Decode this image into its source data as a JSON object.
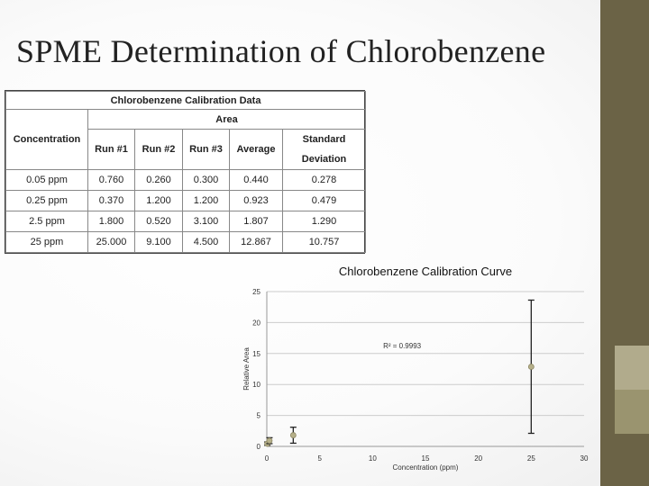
{
  "slide": {
    "title": "SPME Determination of Chlorobenzene"
  },
  "table": {
    "caption": "Chlorobenzene Calibration Data",
    "group_header": "Area",
    "headers": {
      "concentration": "Concentration",
      "run1": "Run #1",
      "run2": "Run #2",
      "run3": "Run #3",
      "average": "Average",
      "sd_line1": "Standard",
      "sd_line2": "Deviation"
    },
    "rows": [
      {
        "concentration": "0.05 ppm",
        "run1": "0.760",
        "run2": "0.260",
        "run3": "0.300",
        "average": "0.440",
        "sd": "0.278"
      },
      {
        "concentration": "0.25 ppm",
        "run1": "0.370",
        "run2": "1.200",
        "run3": "1.200",
        "average": "0.923",
        "sd": "0.479"
      },
      {
        "concentration": "2.5 ppm",
        "run1": "1.800",
        "run2": "0.520",
        "run3": "3.100",
        "average": "1.807",
        "sd": "1.290"
      },
      {
        "concentration": "25 ppm",
        "run1": "25.000",
        "run2": "9.100",
        "run3": "4.500",
        "average": "12.867",
        "sd": "10.757"
      }
    ]
  },
  "chart_data": {
    "type": "scatter",
    "title": "Chlorobenzene Calibration Curve",
    "xlabel": "Concentration (ppm)",
    "ylabel": "Relative Area",
    "xlim": [
      0,
      30
    ],
    "ylim": [
      0,
      25
    ],
    "xticks": [
      0,
      5,
      10,
      15,
      20,
      25,
      30
    ],
    "yticks": [
      0,
      5,
      10,
      15,
      20,
      25
    ],
    "grid": "horizontal",
    "annotation": "R² = 0.9993",
    "points": [
      {
        "x": 0.05,
        "y": 0.44,
        "err": 0.278
      },
      {
        "x": 0.25,
        "y": 0.923,
        "err": 0.479
      },
      {
        "x": 2.5,
        "y": 1.807,
        "err": 1.29
      },
      {
        "x": 25,
        "y": 12.867,
        "err": 10.757
      }
    ],
    "marker_color": "#b6b08a",
    "errorbar_color": "#222222"
  }
}
